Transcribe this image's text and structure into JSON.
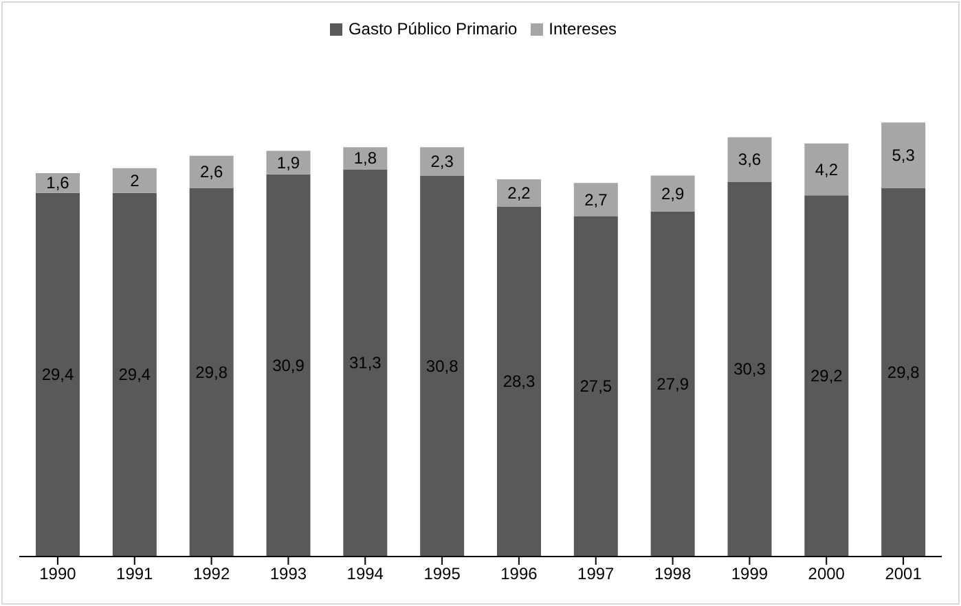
{
  "chart_data": {
    "type": "bar",
    "stacked": true,
    "legend": "top",
    "categories": [
      "1990",
      "1991",
      "1992",
      "1993",
      "1994",
      "1995",
      "1996",
      "1997",
      "1998",
      "1999",
      "2000",
      "2001"
    ],
    "series": [
      {
        "name": "Gasto Público Primario",
        "color": "#595959",
        "values": [
          29.4,
          29.4,
          29.8,
          30.9,
          31.3,
          30.8,
          28.3,
          27.5,
          27.9,
          30.3,
          29.2,
          29.8
        ],
        "value_labels": [
          "29,4",
          "29,4",
          "29,8",
          "30,9",
          "31,3",
          "30,8",
          "28,3",
          "27,5",
          "27,9",
          "30,3",
          "29,2",
          "29,8"
        ]
      },
      {
        "name": "Intereses",
        "color": "#a6a6a6",
        "values": [
          1.6,
          2,
          2.6,
          1.9,
          1.8,
          2.3,
          2.2,
          2.7,
          2.9,
          3.6,
          4.2,
          5.3
        ],
        "value_labels": [
          "1,6",
          "2",
          "2,6",
          "1,9",
          "1,8",
          "2,3",
          "2,2",
          "2,7",
          "2,9",
          "3,6",
          "4,2",
          "5,3"
        ]
      }
    ]
  }
}
